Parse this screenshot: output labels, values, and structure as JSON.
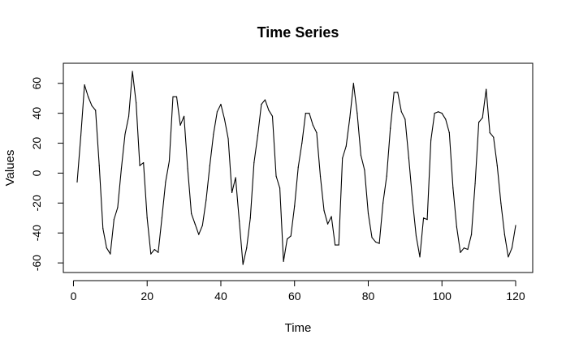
{
  "chart_data": {
    "type": "line",
    "title": "Time Series",
    "xlabel": "Time",
    "ylabel": "Values",
    "xlim": [
      1,
      120
    ],
    "ylim": [
      -61,
      68
    ],
    "x_ticks": [
      0,
      20,
      40,
      60,
      80,
      100,
      120
    ],
    "y_ticks": [
      -60,
      -40,
      -20,
      0,
      20,
      40,
      60
    ],
    "grid": false,
    "line_color": "#000000",
    "series": [
      {
        "values": [
          -6,
          25,
          59,
          51,
          45,
          42,
          5,
          -37,
          -50,
          -54,
          -31,
          -23,
          3,
          26,
          38,
          68,
          47,
          5,
          7,
          -30,
          -54,
          -51,
          -53,
          -30,
          -6,
          8,
          51,
          51,
          32,
          38,
          3,
          -27,
          -34,
          -41,
          -35,
          -18,
          5,
          26,
          41,
          46,
          36,
          23,
          -13,
          -3,
          -32,
          -61,
          -50,
          -30,
          7,
          25,
          46,
          49,
          42,
          38,
          -2,
          -10,
          -59,
          -44,
          -42,
          -22,
          4,
          20,
          40,
          40,
          32,
          27,
          -2,
          -25,
          -34,
          -29,
          -48,
          -48,
          10,
          18,
          37,
          60,
          40,
          12,
          2,
          -27,
          -43,
          -46,
          -47,
          -20,
          -2,
          30,
          54,
          54,
          41,
          36,
          10,
          -18,
          -42,
          -56,
          -30,
          -31,
          22,
          40,
          41,
          40,
          36,
          27,
          -10,
          -36,
          -53,
          -50,
          -51,
          -41,
          -7,
          34,
          37,
          56,
          27,
          24,
          5,
          -20,
          -41,
          -56,
          -50,
          -35
        ]
      }
    ]
  }
}
